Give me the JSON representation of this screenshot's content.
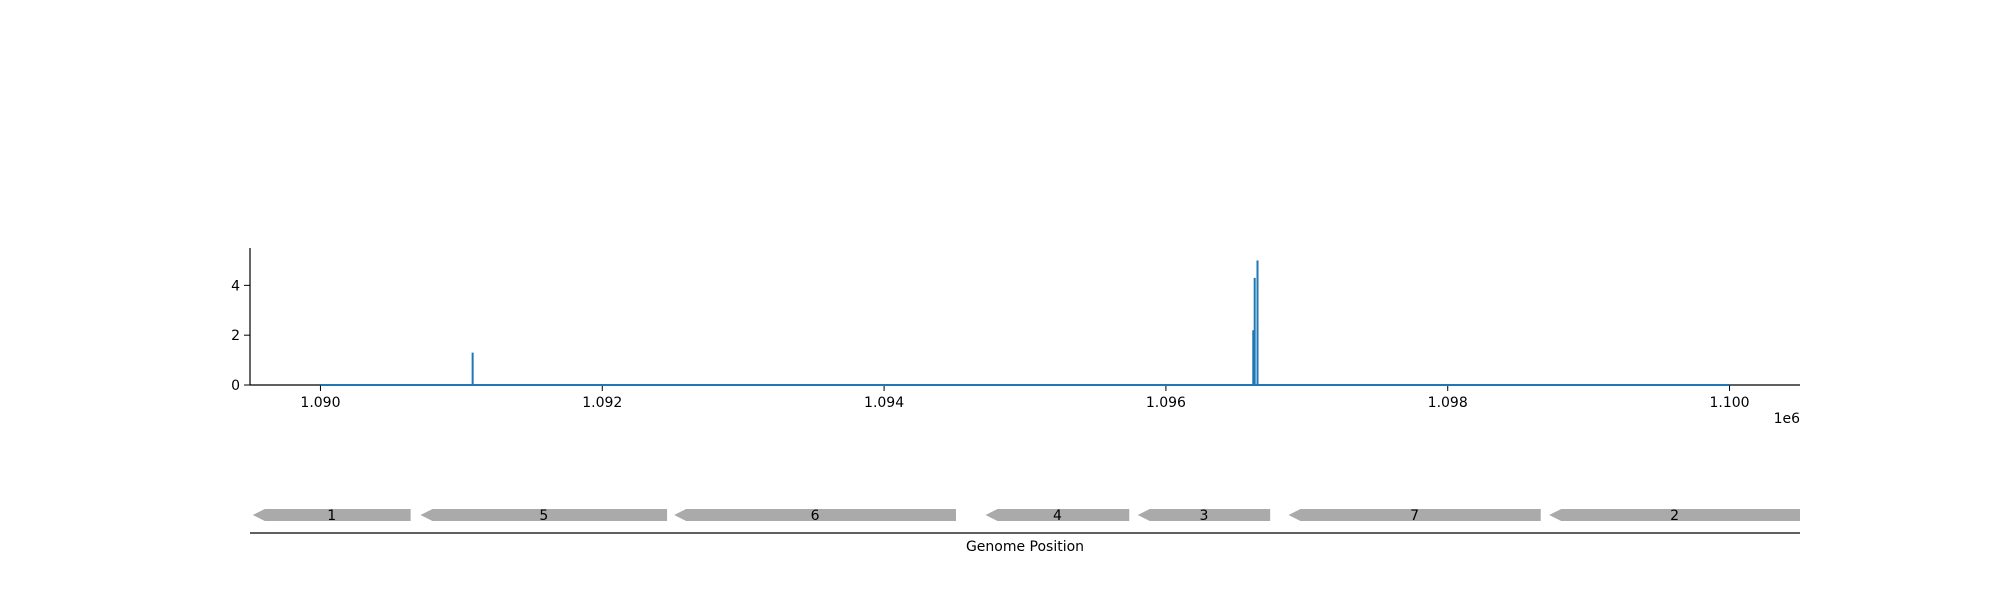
{
  "chart_data": [
    {
      "type": "line",
      "title": "",
      "xlabel": "",
      "ylabel": "",
      "x_offset_label": "1e6",
      "xlim": [
        1.0895,
        1.1005
      ],
      "ylim": [
        0,
        5.5
      ],
      "x_ticks": [
        1.09,
        1.092,
        1.094,
        1.096,
        1.098,
        1.1
      ],
      "x_tick_labels": [
        "1.090",
        "1.092",
        "1.094",
        "1.096",
        "1.098",
        "1.100"
      ],
      "y_ticks": [
        0,
        2,
        4
      ],
      "y_tick_labels": [
        "0",
        "2",
        "4"
      ],
      "grid": false,
      "series": [
        {
          "color": "#1f77b4",
          "baseline": {
            "x": [
              1.09,
              1.1
            ],
            "y": 0
          },
          "spikes": [
            {
              "x": 1.09108,
              "y": 1.3
            },
            {
              "x": 1.09662,
              "y": 2.2
            },
            {
              "x": 1.09663,
              "y": 4.3
            },
            {
              "x": 1.09665,
              "y": 5.0
            }
          ]
        }
      ]
    },
    {
      "type": "gene-track",
      "xlabel": "Genome Position",
      "color": "#aaaaaa",
      "genes": [
        {
          "label": "1",
          "start": 1.08952,
          "end": 1.09064,
          "strand": "-"
        },
        {
          "label": "5",
          "start": 1.09071,
          "end": 1.09246,
          "strand": "-"
        },
        {
          "label": "6",
          "start": 1.09251,
          "end": 1.09451,
          "strand": "-"
        },
        {
          "label": "4",
          "start": 1.09472,
          "end": 1.09574,
          "strand": "-"
        },
        {
          "label": "3",
          "start": 1.0958,
          "end": 1.09674,
          "strand": "-"
        },
        {
          "label": "7",
          "start": 1.09687,
          "end": 1.09866,
          "strand": "-"
        },
        {
          "label": "2",
          "start": 1.09872,
          "end": 1.1005,
          "strand": "-"
        }
      ]
    }
  ]
}
